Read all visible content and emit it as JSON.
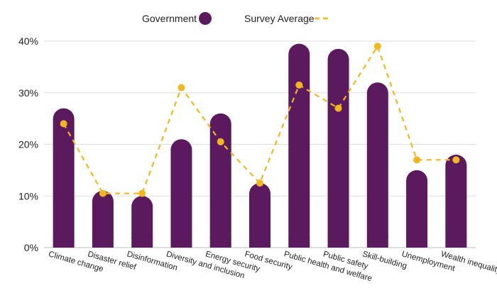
{
  "chart_data": {
    "type": "bar",
    "categories": [
      "Climate change",
      "Disaster relief",
      "Disinformation",
      "Diversity and inclusion",
      "Energy security",
      "Food security",
      "Public health and welfare",
      "Public safety",
      "Skill-building",
      "Unemployment",
      "Wealth inequality"
    ],
    "series": [
      {
        "name": "Government",
        "type": "bar",
        "color": "#5b1a5e",
        "values": [
          27,
          11,
          10,
          21,
          26,
          12.5,
          39.5,
          38.5,
          32,
          15,
          18
        ]
      },
      {
        "name": "Survey Average",
        "type": "line",
        "style": "dashed",
        "color": "#f2b71f",
        "values": [
          24,
          10.5,
          10.5,
          31,
          20.5,
          12.5,
          31.5,
          27,
          39,
          17,
          17
        ]
      }
    ],
    "yticks": [
      "0%",
      "10%",
      "20%",
      "30%",
      "40%"
    ],
    "ylim": [
      0,
      40
    ],
    "grid": true,
    "legend_position": "top-center"
  }
}
